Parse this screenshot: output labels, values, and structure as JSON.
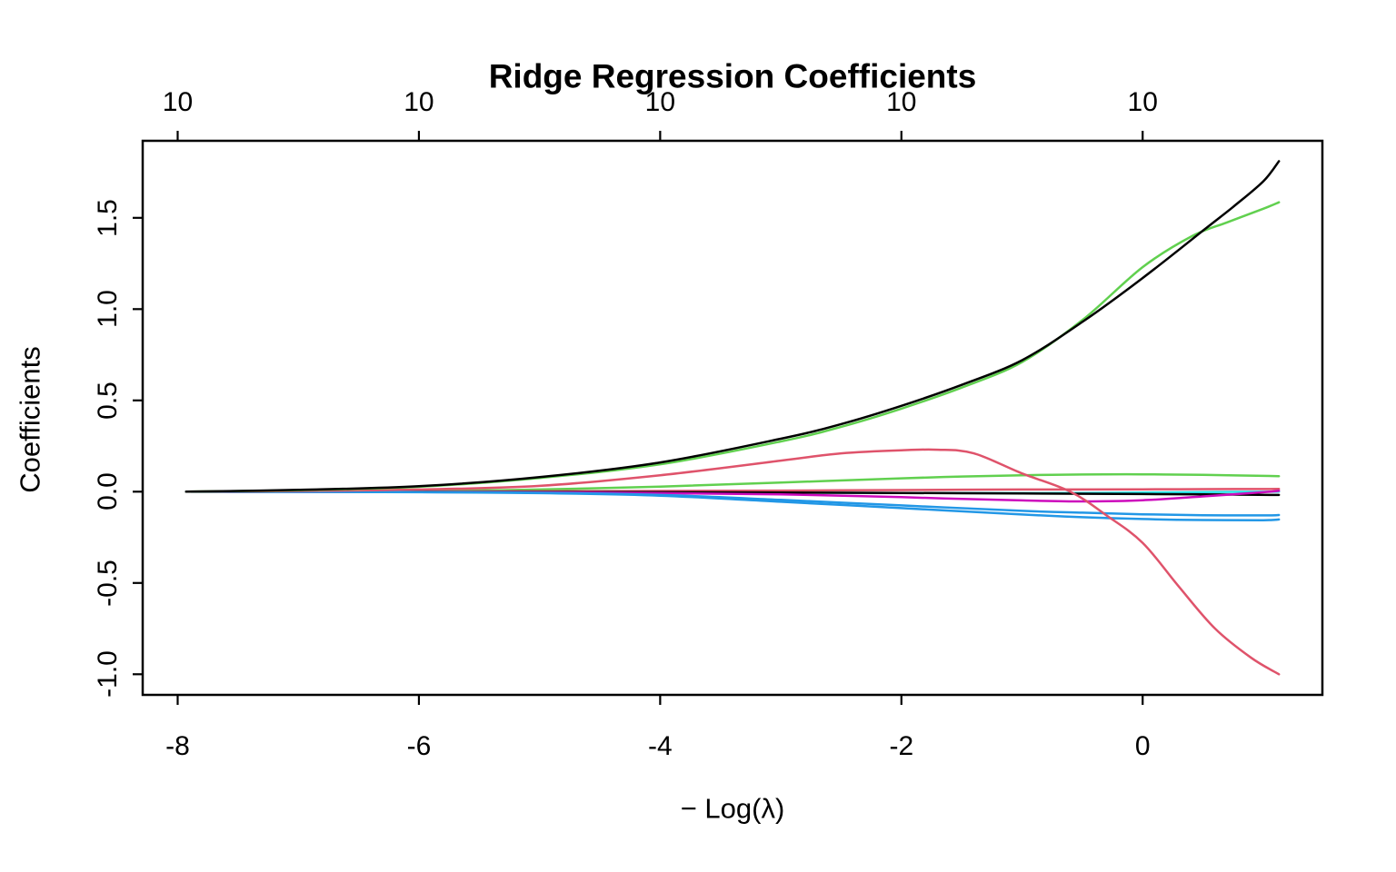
{
  "chart_data": {
    "type": "line",
    "title": "Ridge Regression Coefficients",
    "xlabel": "− Log(λ)",
    "ylabel": "Coefficients",
    "grid": false,
    "legend": "none",
    "xlim": [
      -8.29,
      1.49
    ],
    "ylim": [
      -1.113,
      1.922
    ],
    "x_axis": {
      "ticks": [
        -8,
        -6,
        -4,
        -2,
        0
      ],
      "labels": [
        "-8",
        "-6",
        "-4",
        "-2",
        "0"
      ]
    },
    "y_axis": {
      "ticks": [
        -1.0,
        -0.5,
        0.0,
        0.5,
        1.0,
        1.5
      ],
      "labels": [
        "-1.0",
        "-0.5",
        "0.0",
        "0.5",
        "1.0",
        "1.5"
      ]
    },
    "top_axis": {
      "description": "number of nonzero coefficients at each lambda",
      "ticks": [
        -8,
        -6,
        -4,
        -2,
        0
      ],
      "labels": [
        "10",
        "10",
        "10",
        "10",
        "10"
      ]
    },
    "palette": {
      "black": "#000000",
      "red": "#DF536B",
      "green": "#61D04F",
      "blue": "#2297E6",
      "cyan": "#28E2E5",
      "magenta": "#CD0BBC"
    },
    "series": [
      {
        "name": "coef-green-low",
        "color": "#61D04F",
        "points": [
          [
            -7.93,
            0
          ],
          [
            -6,
            0.004
          ],
          [
            -5,
            0.012
          ],
          [
            -4,
            0.028
          ],
          [
            -3,
            0.05
          ],
          [
            -2,
            0.073
          ],
          [
            -1.5,
            0.083
          ],
          [
            -1,
            0.09
          ],
          [
            -0.5,
            0.094
          ],
          [
            0,
            0.095
          ],
          [
            0.5,
            0.092
          ],
          [
            1.13,
            0.085
          ]
        ]
      },
      {
        "name": "coef-cyan-flat",
        "color": "#28E2E5",
        "points": [
          [
            -7.93,
            0
          ],
          [
            -6,
            -0.001
          ],
          [
            -5,
            -0.002
          ],
          [
            -4,
            -0.003
          ],
          [
            -3,
            -0.005
          ],
          [
            -2,
            -0.007
          ],
          [
            -1,
            -0.008
          ],
          [
            -0.5,
            -0.007
          ],
          [
            0,
            -0.005
          ],
          [
            0.5,
            -0.002
          ],
          [
            1.13,
            0.0
          ]
        ]
      },
      {
        "name": "coef-red-flat",
        "color": "#DF536B",
        "points": [
          [
            -7.93,
            0
          ],
          [
            -6,
            0.001
          ],
          [
            -5,
            0.002
          ],
          [
            -4,
            0.004
          ],
          [
            -3,
            0.006
          ],
          [
            -2,
            0.009
          ],
          [
            -1,
            0.012
          ],
          [
            0,
            0.013
          ],
          [
            0.5,
            0.014
          ],
          [
            1.13,
            0.015
          ]
        ]
      },
      {
        "name": "coef-black-flat",
        "color": "#000000",
        "points": [
          [
            -7.93,
            0
          ],
          [
            -6,
            -0.001
          ],
          [
            -5,
            -0.002
          ],
          [
            -4,
            -0.003
          ],
          [
            -3,
            -0.005
          ],
          [
            -2,
            -0.007
          ],
          [
            -1,
            -0.01
          ],
          [
            0,
            -0.013
          ],
          [
            0.5,
            -0.015
          ],
          [
            1.13,
            -0.018
          ]
        ]
      },
      {
        "name": "coef-magenta",
        "color": "#CD0BBC",
        "points": [
          [
            -7.93,
            0
          ],
          [
            -6,
            -0.002
          ],
          [
            -5,
            -0.004
          ],
          [
            -4,
            -0.008
          ],
          [
            -3,
            -0.015
          ],
          [
            -2,
            -0.03
          ],
          [
            -1.5,
            -0.04
          ],
          [
            -1,
            -0.048
          ],
          [
            -0.5,
            -0.053
          ],
          [
            0,
            -0.047
          ],
          [
            0.5,
            -0.026
          ],
          [
            1,
            -0.003
          ],
          [
            1.13,
            0.005
          ]
        ]
      },
      {
        "name": "coef-blue-1",
        "color": "#2297E6",
        "points": [
          [
            -7.93,
            0
          ],
          [
            -6,
            -0.002
          ],
          [
            -5,
            -0.006
          ],
          [
            -4,
            -0.018
          ],
          [
            -3,
            -0.045
          ],
          [
            -2,
            -0.075
          ],
          [
            -1,
            -0.105
          ],
          [
            -0.5,
            -0.115
          ],
          [
            0,
            -0.124
          ],
          [
            0.5,
            -0.129
          ],
          [
            1,
            -0.13
          ],
          [
            1.13,
            -0.128
          ]
        ]
      },
      {
        "name": "coef-blue-2",
        "color": "#2297E6",
        "points": [
          [
            -7.93,
            0
          ],
          [
            -6,
            -0.003
          ],
          [
            -5,
            -0.008
          ],
          [
            -4,
            -0.022
          ],
          [
            -3,
            -0.055
          ],
          [
            -2,
            -0.09
          ],
          [
            -1,
            -0.125
          ],
          [
            -0.5,
            -0.14
          ],
          [
            0,
            -0.15
          ],
          [
            0.5,
            -0.155
          ],
          [
            1,
            -0.156
          ],
          [
            1.13,
            -0.152
          ]
        ]
      },
      {
        "name": "coef-red-arc",
        "color": "#DF536B",
        "points": [
          [
            -7.93,
            0
          ],
          [
            -7,
            0.004
          ],
          [
            -6,
            0.012
          ],
          [
            -5,
            0.032
          ],
          [
            -4,
            0.09
          ],
          [
            -3,
            0.17
          ],
          [
            -2.5,
            0.21
          ],
          [
            -2,
            0.227
          ],
          [
            -1.7,
            0.23
          ],
          [
            -1.4,
            0.21
          ],
          [
            -1,
            0.1
          ],
          [
            -0.6,
            0.0
          ],
          [
            -0.3,
            -0.13
          ],
          [
            0,
            -0.28
          ],
          [
            0.3,
            -0.52
          ],
          [
            0.6,
            -0.75
          ],
          [
            0.9,
            -0.91
          ],
          [
            1.13,
            -1.0
          ]
        ]
      },
      {
        "name": "coef-green-rise",
        "color": "#61D04F",
        "points": [
          [
            -7.93,
            0
          ],
          [
            -7,
            0.008
          ],
          [
            -6,
            0.027
          ],
          [
            -5,
            0.075
          ],
          [
            -4,
            0.15
          ],
          [
            -3,
            0.275
          ],
          [
            -2.5,
            0.355
          ],
          [
            -2,
            0.455
          ],
          [
            -1.5,
            0.57
          ],
          [
            -1,
            0.71
          ],
          [
            -0.5,
            0.94
          ],
          [
            0,
            1.23
          ],
          [
            0.41,
            1.4
          ],
          [
            0.7,
            1.475
          ],
          [
            1,
            1.55
          ],
          [
            1.13,
            1.585
          ]
        ]
      },
      {
        "name": "coef-black-rise",
        "color": "#000000",
        "points": [
          [
            -7.93,
            0
          ],
          [
            -7,
            0.01
          ],
          [
            -6,
            0.03
          ],
          [
            -5,
            0.08
          ],
          [
            -4,
            0.16
          ],
          [
            -3,
            0.29
          ],
          [
            -2.5,
            0.37
          ],
          [
            -2,
            0.47
          ],
          [
            -1.5,
            0.585
          ],
          [
            -1,
            0.72
          ],
          [
            -0.5,
            0.93
          ],
          [
            0,
            1.17
          ],
          [
            0.5,
            1.43
          ],
          [
            0.75,
            1.56
          ],
          [
            1,
            1.7
          ],
          [
            1.13,
            1.81
          ]
        ]
      }
    ]
  }
}
